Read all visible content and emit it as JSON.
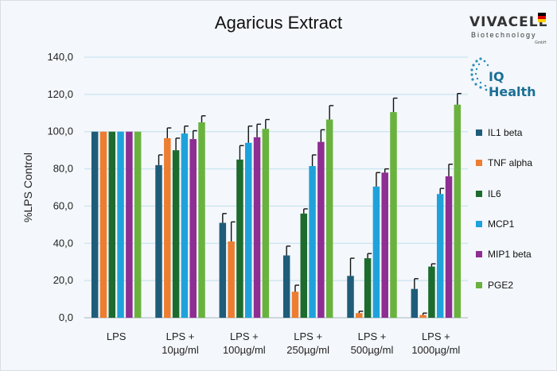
{
  "chart_data": {
    "type": "bar",
    "title": "Agaricus Extract",
    "ylabel": "%LPS Control",
    "xlabel": "",
    "ylim": [
      0,
      140
    ],
    "yticks": [
      "0,0",
      "20,0",
      "40,0",
      "60,0",
      "80,0",
      "100,0",
      "120,0",
      "140,0"
    ],
    "grid": true,
    "legend_position": "right",
    "categories": [
      [
        "LPS"
      ],
      [
        "LPS +",
        "10µg/ml"
      ],
      [
        "LPS +",
        "100µg/ml"
      ],
      [
        "LPS +",
        "250µg/ml"
      ],
      [
        "LPS +",
        "500µg/ml"
      ],
      [
        "LPS +",
        "1000µg/ml"
      ]
    ],
    "series": [
      {
        "name": "IL1 beta",
        "color": "#1f5c7a",
        "values": [
          100,
          82,
          51,
          33.5,
          22.5,
          15.5
        ],
        "errors": [
          0,
          5.5,
          5,
          5,
          9.5,
          5.5
        ]
      },
      {
        "name": "TNF alpha",
        "color": "#ed7d31",
        "values": [
          100,
          96.5,
          41,
          14,
          2.5,
          1.5
        ],
        "errors": [
          0,
          5.5,
          10.5,
          3.5,
          1,
          1
        ]
      },
      {
        "name": "IL6",
        "color": "#1e6b2e",
        "values": [
          100,
          90,
          85,
          56,
          32,
          27.5
        ],
        "errors": [
          0,
          6.5,
          7.5,
          2.5,
          2.5,
          1.5
        ]
      },
      {
        "name": "MCP1",
        "color": "#1fa2db",
        "values": [
          100,
          99,
          94,
          81.5,
          70.5,
          66.5
        ],
        "errors": [
          0,
          4,
          9,
          6,
          7.5,
          3
        ]
      },
      {
        "name": "MIP1 beta",
        "color": "#8e2d92",
        "values": [
          100,
          96,
          97,
          94.5,
          78,
          76
        ],
        "errors": [
          0,
          4.5,
          7,
          6.5,
          2,
          6.5
        ]
      },
      {
        "name": "PGE2",
        "color": "#6ab23e",
        "values": [
          100,
          105,
          101.5,
          106.5,
          110.5,
          114.5
        ],
        "errors": [
          0,
          3.5,
          5,
          7.5,
          7.5,
          6
        ]
      }
    ]
  },
  "logos": {
    "vivacell_main": "VIVACELL",
    "vivacell_sub": "Biotechnology",
    "vivacell_gmbh": "GmbH",
    "iq_health": "IQ Health"
  }
}
